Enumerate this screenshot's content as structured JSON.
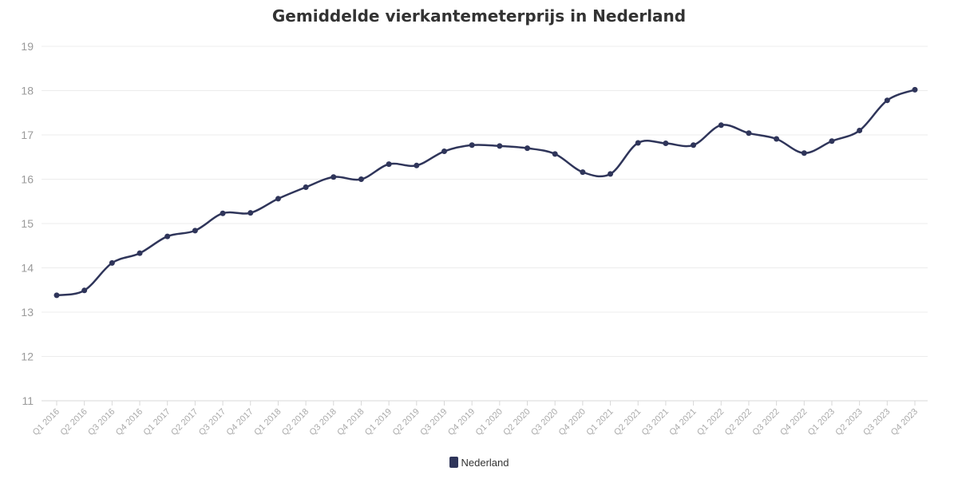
{
  "chart_data": {
    "type": "line",
    "title": "Gemiddelde vierkantemeterprijs in Nederland",
    "xlabel": "",
    "ylabel": "",
    "ylim": [
      11,
      19
    ],
    "yticks": [
      "11",
      "12",
      "13",
      "14",
      "15",
      "16",
      "17",
      "18",
      "19"
    ],
    "grid": true,
    "legend_position": "bottom",
    "categories": [
      "Q1 2016",
      "Q2 2016",
      "Q3 2016",
      "Q4 2016",
      "Q1 2017",
      "Q2 2017",
      "Q3 2017",
      "Q4 2017",
      "Q1 2018",
      "Q2 2018",
      "Q3 2018",
      "Q4 2018",
      "Q1 2019",
      "Q2 2019",
      "Q3 2019",
      "Q4 2019",
      "Q1 2020",
      "Q2 2020",
      "Q3 2020",
      "Q4 2020",
      "Q1 2021",
      "Q2 2021",
      "Q3 2021",
      "Q4 2021",
      "Q1 2022",
      "Q2 2022",
      "Q3 2022",
      "Q4 2022",
      "Q1 2023",
      "Q2 2023",
      "Q3 2023",
      "Q4 2023"
    ],
    "series": [
      {
        "name": "Nederland",
        "color": "#2f355a",
        "values": [
          13.38,
          13.49,
          14.11,
          14.33,
          14.71,
          14.84,
          15.23,
          15.24,
          15.56,
          15.82,
          16.05,
          16.0,
          16.34,
          16.31,
          16.63,
          16.77,
          16.75,
          16.7,
          16.57,
          16.16,
          16.12,
          16.82,
          16.81,
          16.77,
          17.22,
          17.04,
          16.91,
          16.59,
          16.86,
          17.1,
          17.78,
          18.02
        ]
      }
    ]
  }
}
